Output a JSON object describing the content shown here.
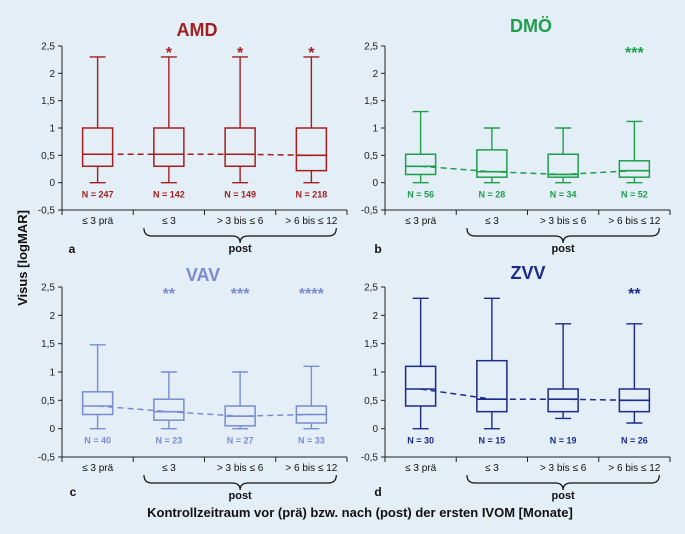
{
  "figure": {
    "y_axis_label": "Visus [logMAR]",
    "x_axis_label": "Kontrollzeitraum vor (prä) bzw. nach (post) der ersten IVOM [Monate]"
  },
  "chart_data": [
    {
      "panel": "a",
      "type": "box",
      "title": "AMD",
      "color": "#a31f1f",
      "ylim": [
        -0.5,
        2.5
      ],
      "yticks": [
        -0.5,
        0,
        0.5,
        1,
        1.5,
        2,
        2.5
      ],
      "ytick_labels": [
        "-0,5",
        "0",
        "0,5",
        "1",
        "1,5",
        "2",
        "2,5"
      ],
      "categories": [
        "≤ 3 prä",
        "≤ 3",
        "> 3 bis ≤ 6",
        "> 6 bis ≤ 12"
      ],
      "group_label": "post",
      "boxes": [
        {
          "min": 0.0,
          "q1": 0.3,
          "median": 0.52,
          "q3": 1.0,
          "max": 2.3
        },
        {
          "min": 0.0,
          "q1": 0.3,
          "median": 0.52,
          "q3": 1.0,
          "max": 2.3
        },
        {
          "min": 0.0,
          "q1": 0.3,
          "median": 0.52,
          "q3": 1.0,
          "max": 2.3
        },
        {
          "min": 0.0,
          "q1": 0.22,
          "median": 0.5,
          "q3": 1.0,
          "max": 2.3
        }
      ],
      "n_labels": [
        "N = 247",
        "N = 142",
        "N = 149",
        "N = 218"
      ],
      "significance": [
        "",
        "*",
        "*",
        "*"
      ]
    },
    {
      "panel": "b",
      "type": "box",
      "title": "DMÖ",
      "color": "#1f9e4c",
      "ylim": [
        -0.5,
        2.5
      ],
      "yticks": [
        -0.5,
        0,
        0.5,
        1,
        1.5,
        2,
        2.5
      ],
      "ytick_labels": [
        "-0,5",
        "0",
        "0,5",
        "1",
        "1,5",
        "2",
        "2,5"
      ],
      "categories": [
        "≤ 3 prä",
        "≤ 3",
        "> 3 bis ≤ 6",
        "> 6 bis ≤ 12"
      ],
      "group_label": "post",
      "boxes": [
        {
          "min": 0.0,
          "q1": 0.15,
          "median": 0.3,
          "q3": 0.52,
          "max": 1.3
        },
        {
          "min": 0.0,
          "q1": 0.1,
          "median": 0.2,
          "q3": 0.6,
          "max": 1.0
        },
        {
          "min": 0.0,
          "q1": 0.1,
          "median": 0.15,
          "q3": 0.52,
          "max": 1.0
        },
        {
          "min": 0.0,
          "q1": 0.1,
          "median": 0.22,
          "q3": 0.4,
          "max": 1.12
        }
      ],
      "n_labels": [
        "N = 56",
        "N = 28",
        "N = 34",
        "N = 52"
      ],
      "significance": [
        "",
        "",
        "",
        "***"
      ]
    },
    {
      "panel": "c",
      "type": "box",
      "title": "VAV",
      "color": "#7b8bcf",
      "ylim": [
        -0.5,
        2.5
      ],
      "yticks": [
        -0.5,
        0,
        0.5,
        1,
        1.5,
        2,
        2.5
      ],
      "ytick_labels": [
        "-0,5",
        "0",
        "0,5",
        "1",
        "1,5",
        "2",
        "2,5"
      ],
      "categories": [
        "≤ 3 prä",
        "≤ 3",
        "> 3 bis ≤ 6",
        "> 6 bis ≤ 12"
      ],
      "group_label": "post",
      "boxes": [
        {
          "min": 0.0,
          "q1": 0.25,
          "median": 0.4,
          "q3": 0.65,
          "max": 1.48
        },
        {
          "min": 0.0,
          "q1": 0.15,
          "median": 0.3,
          "q3": 0.52,
          "max": 1.0
        },
        {
          "min": 0.0,
          "q1": 0.05,
          "median": 0.22,
          "q3": 0.4,
          "max": 1.0
        },
        {
          "min": 0.0,
          "q1": 0.1,
          "median": 0.25,
          "q3": 0.4,
          "max": 1.1
        }
      ],
      "n_labels": [
        "N = 40",
        "N = 23",
        "N = 27",
        "N = 33"
      ],
      "significance": [
        "",
        "**",
        "***",
        "****"
      ]
    },
    {
      "panel": "d",
      "type": "box",
      "title": "ZVV",
      "color": "#1c2a8a",
      "ylim": [
        -0.5,
        2.5
      ],
      "yticks": [
        -0.5,
        0,
        0.5,
        1,
        1.5,
        2,
        2.5
      ],
      "ytick_labels": [
        "-0,5",
        "0",
        "0,5",
        "1",
        "1,5",
        "2",
        "2,5"
      ],
      "categories": [
        "≤ 3 prä",
        "≤ 3",
        "> 3 bis ≤ 6",
        "> 6 bis ≤ 12"
      ],
      "group_label": "post",
      "boxes": [
        {
          "min": 0.0,
          "q1": 0.4,
          "median": 0.7,
          "q3": 1.1,
          "max": 2.3
        },
        {
          "min": 0.0,
          "q1": 0.3,
          "median": 0.52,
          "q3": 1.2,
          "max": 2.3
        },
        {
          "min": 0.18,
          "q1": 0.3,
          "median": 0.52,
          "q3": 0.7,
          "max": 1.85
        },
        {
          "min": 0.1,
          "q1": 0.3,
          "median": 0.5,
          "q3": 0.7,
          "max": 1.85
        }
      ],
      "n_labels": [
        "N = 30",
        "N = 15",
        "N = 19",
        "N = 26"
      ],
      "significance": [
        "",
        "",
        "",
        "**"
      ]
    }
  ]
}
